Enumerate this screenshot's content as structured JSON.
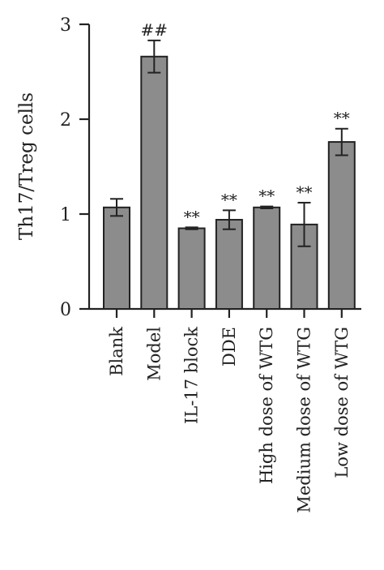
{
  "chart_data": {
    "type": "bar",
    "ylabel": "Th17/Treg cells",
    "ylim": [
      0,
      3
    ],
    "yticks": [
      0,
      1,
      2,
      3
    ],
    "categories": [
      "Blank",
      "Model",
      "IL-17 block",
      "DDE",
      "High dose of WTG",
      "Medium dose of WTG",
      "Low dose of WTG"
    ],
    "values": [
      1.07,
      2.66,
      0.85,
      0.94,
      1.07,
      0.89,
      1.76
    ],
    "errors": [
      0.09,
      0.17,
      0.01,
      0.1,
      0.01,
      0.23,
      0.14
    ],
    "annotations": [
      "",
      "##",
      "**",
      "**",
      "**",
      "**",
      "**"
    ],
    "bar_color": "#8c8c8c",
    "grid": false,
    "legend": "none"
  }
}
